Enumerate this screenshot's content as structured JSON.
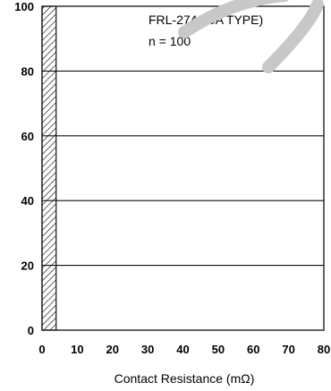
{
  "chart_data": {
    "type": "bar",
    "categories": [
      "0-5"
    ],
    "series": [
      {
        "values": [
          100
        ]
      }
    ],
    "xlim": [
      0,
      80
    ],
    "ylim": [
      0,
      100
    ],
    "xticks": [
      "0",
      "10",
      "20",
      "30",
      "40",
      "50",
      "60",
      "70",
      "80"
    ],
    "yticks": [
      "0",
      "20",
      "40",
      "60",
      "80",
      "100"
    ],
    "bars": [
      {
        "x0": 0,
        "x1": 4,
        "y": 100
      }
    ],
    "xlabel": "Contact Resistance (mΩ)",
    "ylabel": "",
    "annotations": [
      "FRL-274(40A TYPE)",
      "n = 100"
    ],
    "grid": "horizontal",
    "bar_fill": "diagonal-hatch"
  }
}
